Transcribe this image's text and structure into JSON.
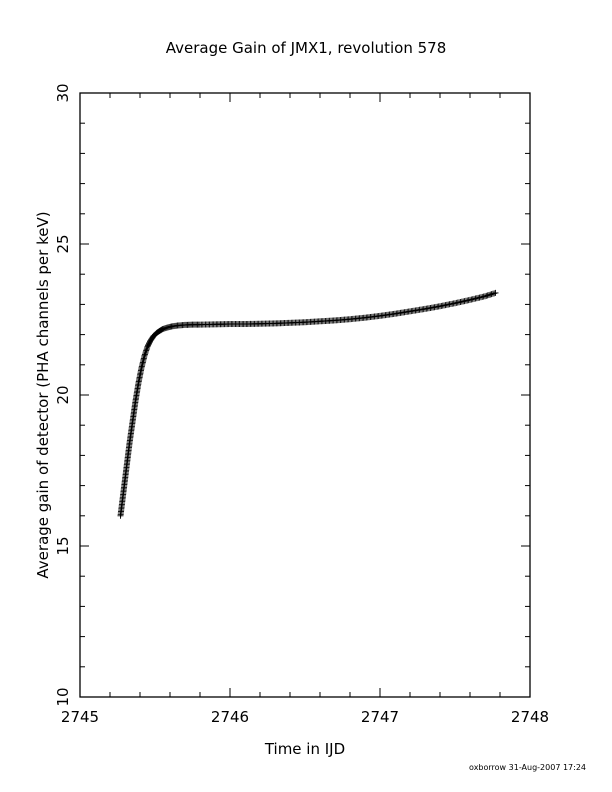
{
  "chart_data": {
    "type": "scatter",
    "title": "Average Gain of JMX1, revolution 578",
    "xlabel": "Time in IJD",
    "ylabel": "Average gain of detector (PHA channels per keV)",
    "xlim": [
      2745,
      2748
    ],
    "ylim": [
      10,
      30
    ],
    "x_ticks": [
      "2745",
      "2746",
      "2747",
      "2748"
    ],
    "y_ticks": [
      "10",
      "15",
      "20",
      "25",
      "30"
    ],
    "marker": "plus",
    "grid": false,
    "legend": "none",
    "footer": "oxborrow 31-Aug-2007 17:24",
    "series": [
      {
        "color": "#000000",
        "x": [
          2745.27,
          2745.29,
          2745.31,
          2745.33,
          2745.35,
          2745.37,
          2745.39,
          2745.41,
          2745.43,
          2745.45,
          2745.47,
          2745.49,
          2745.51,
          2745.53,
          2745.55,
          2745.58,
          2745.61,
          2745.65,
          2745.7,
          2745.75,
          2745.8,
          2745.9,
          2746.0,
          2746.1,
          2746.2,
          2746.3,
          2746.4,
          2746.5,
          2746.6,
          2746.7,
          2746.8,
          2746.9,
          2747.0,
          2747.1,
          2747.2,
          2747.3,
          2747.4,
          2747.5,
          2747.6,
          2747.7,
          2747.77
        ],
        "y": [
          16.0,
          16.8,
          17.6,
          18.4,
          19.1,
          19.8,
          20.4,
          20.9,
          21.3,
          21.6,
          21.8,
          21.95,
          22.05,
          22.12,
          22.18,
          22.23,
          22.27,
          22.3,
          22.32,
          22.33,
          22.33,
          22.34,
          22.35,
          22.35,
          22.36,
          22.37,
          22.39,
          22.41,
          22.44,
          22.47,
          22.51,
          22.56,
          22.62,
          22.69,
          22.77,
          22.85,
          22.94,
          23.04,
          23.15,
          23.27,
          23.38
        ]
      }
    ]
  }
}
